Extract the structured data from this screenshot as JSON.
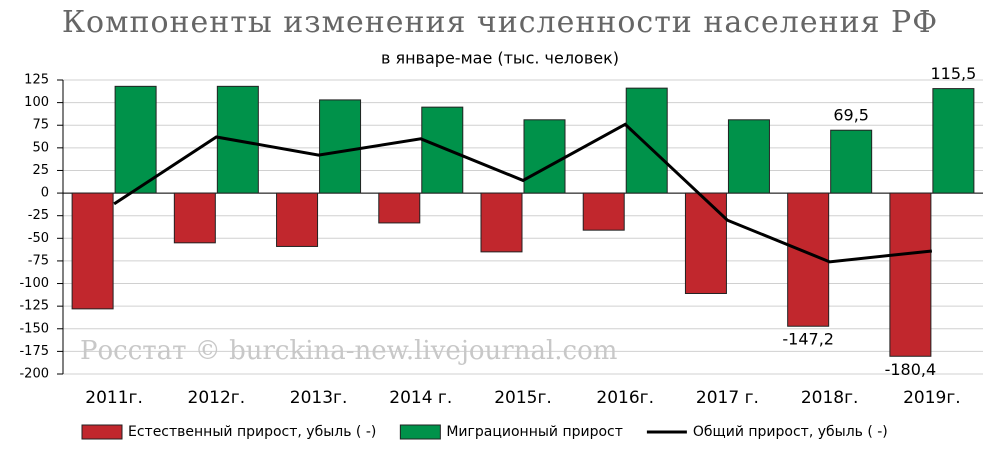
{
  "chart_data": {
    "type": "bar",
    "title": "Компоненты изменения численности населения РФ",
    "subtitle": "в январе-мае (тыс. человек)",
    "watermark": "Росстат © burckina-new.livejournal.com",
    "categories": [
      "2011г.",
      "2012г.",
      "2013г.",
      "2014 г.",
      "2015г.",
      "2016г.",
      "2017 г.",
      "2018г.",
      "2019г."
    ],
    "series": [
      {
        "name": "Естественный прирост, убыль ( -)",
        "type": "bar",
        "color": "#c1272d",
        "values": [
          -128,
          -55,
          -59,
          -33,
          -65,
          -41,
          -111,
          -147.2,
          -180.4
        ],
        "value_labels": [
          null,
          null,
          null,
          null,
          null,
          null,
          null,
          "-147,2",
          "-180,4"
        ]
      },
      {
        "name": "Миграционный прирост",
        "type": "bar",
        "color": "#00924a",
        "values": [
          118,
          118,
          103,
          95,
          81,
          116,
          81,
          69.5,
          115.5
        ],
        "value_labels": [
          null,
          null,
          null,
          null,
          null,
          null,
          null,
          "69,5",
          "115,5"
        ]
      },
      {
        "name": "Общий прирост, убыль ( -)",
        "type": "line",
        "color": "#000000",
        "values": [
          -12,
          62,
          42,
          60,
          14,
          76,
          -30,
          -76,
          -64
        ]
      }
    ],
    "ylim": [
      -200,
      125
    ],
    "yticks": [
      125,
      100,
      75,
      50,
      25,
      0,
      -25,
      -50,
      -75,
      -100,
      -125,
      -150,
      -175,
      -200
    ],
    "grid": true,
    "legend": "bottom"
  }
}
